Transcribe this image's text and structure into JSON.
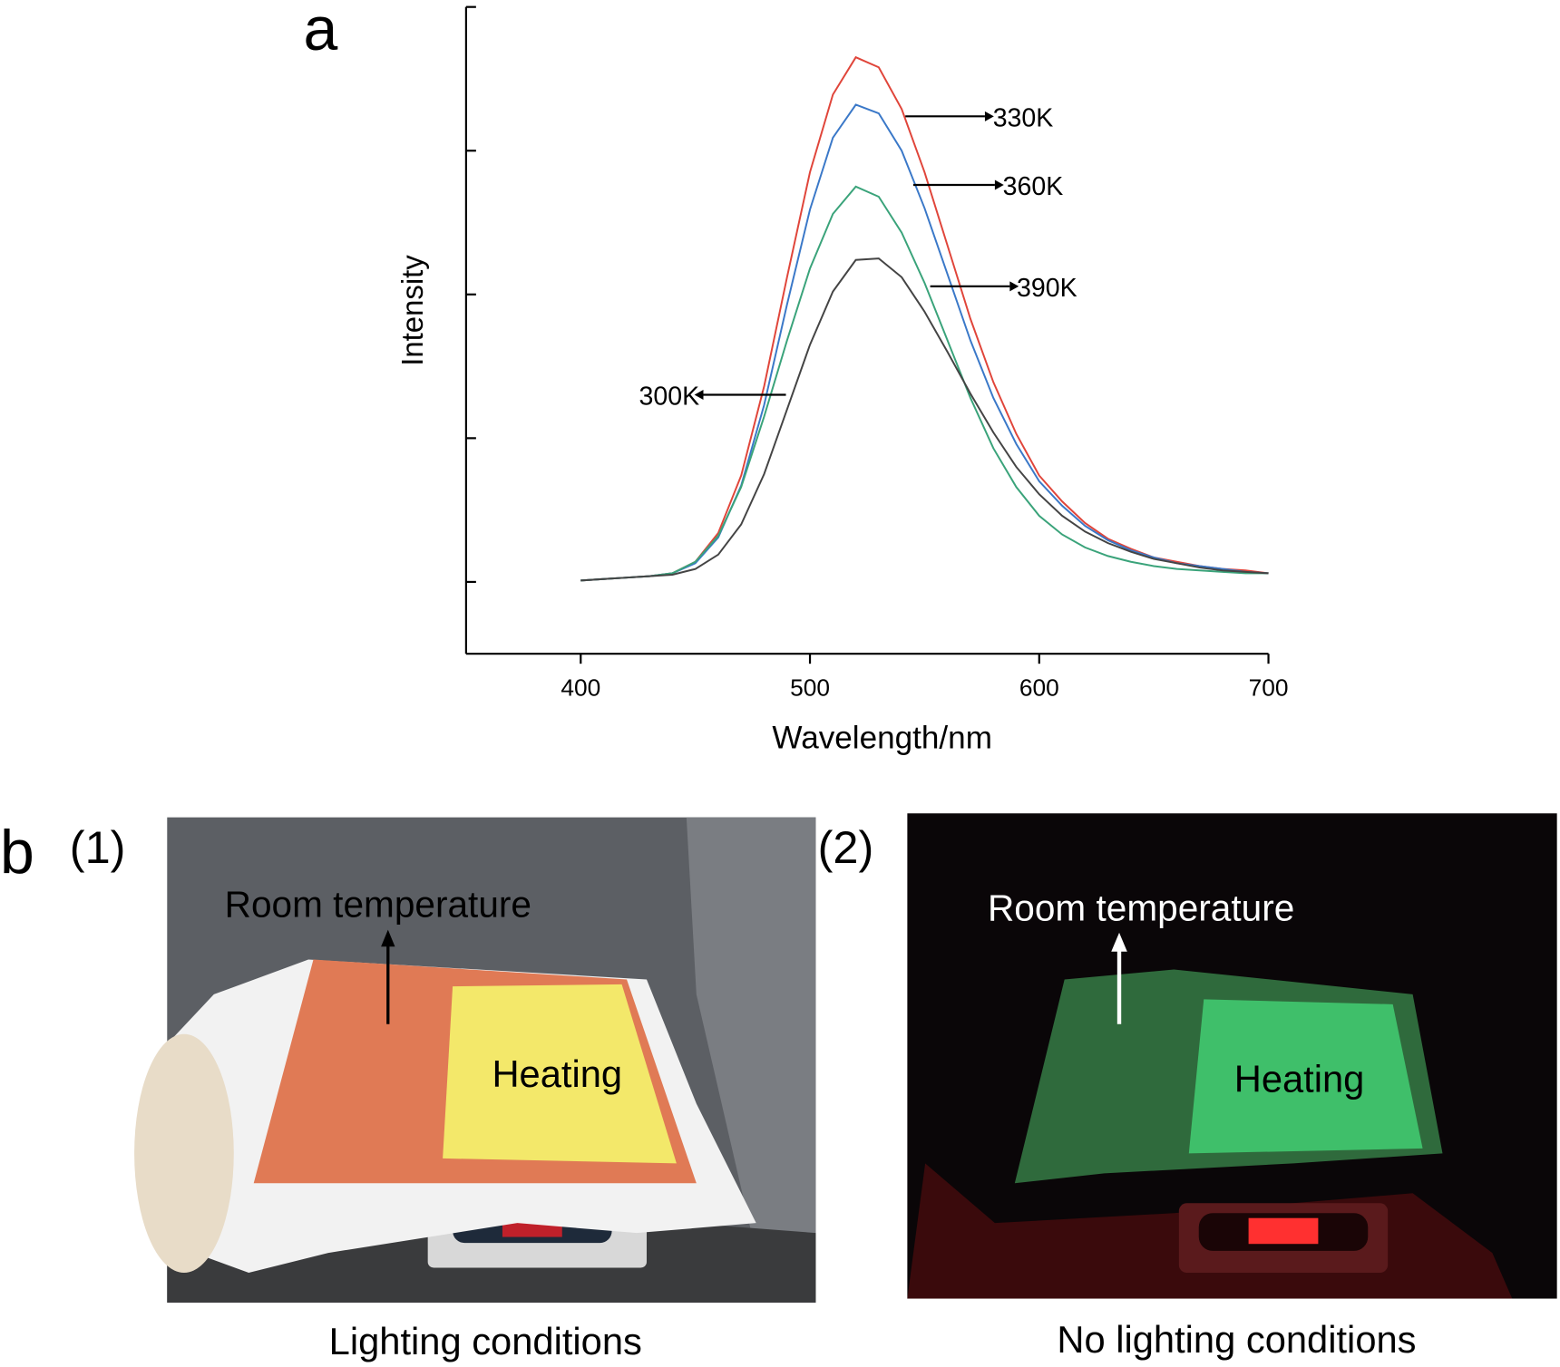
{
  "chart_data": {
    "type": "line",
    "x_label": "Wavelength/nm",
    "y_label": "Intensity",
    "x": [
      400,
      410,
      420,
      430,
      440,
      450,
      460,
      470,
      480,
      490,
      500,
      510,
      520,
      530,
      540,
      550,
      560,
      570,
      580,
      590,
      600,
      610,
      620,
      630,
      640,
      650,
      660,
      670,
      680,
      690,
      700
    ],
    "series": [
      {
        "name": "330K",
        "color": "#e0453a",
        "values": [
          0.01,
          0.02,
          0.03,
          0.04,
          0.06,
          0.14,
          0.34,
          0.74,
          1.36,
          2.12,
          2.85,
          3.39,
          3.65,
          3.58,
          3.29,
          2.85,
          2.34,
          1.83,
          1.39,
          1.03,
          0.74,
          0.56,
          0.41,
          0.3,
          0.23,
          0.17,
          0.14,
          0.11,
          0.09,
          0.08,
          0.06
        ]
      },
      {
        "name": "360K",
        "color": "#3a78c8",
        "values": [
          0.01,
          0.02,
          0.03,
          0.04,
          0.06,
          0.13,
          0.31,
          0.67,
          1.23,
          1.93,
          2.59,
          3.09,
          3.32,
          3.26,
          3.0,
          2.6,
          2.14,
          1.68,
          1.28,
          0.96,
          0.7,
          0.53,
          0.39,
          0.29,
          0.22,
          0.17,
          0.13,
          0.11,
          0.09,
          0.07,
          0.06
        ]
      },
      {
        "name": "390K",
        "color": "#3aa37a",
        "values": [
          0.01,
          0.02,
          0.03,
          0.04,
          0.06,
          0.14,
          0.32,
          0.66,
          1.15,
          1.68,
          2.18,
          2.56,
          2.75,
          2.68,
          2.43,
          2.08,
          1.68,
          1.28,
          0.93,
          0.66,
          0.46,
          0.33,
          0.24,
          0.18,
          0.14,
          0.11,
          0.09,
          0.08,
          0.07,
          0.06,
          0.06
        ]
      },
      {
        "name": "300K",
        "color": "#444444",
        "values": [
          0.01,
          0.02,
          0.03,
          0.04,
          0.05,
          0.09,
          0.19,
          0.4,
          0.75,
          1.2,
          1.65,
          2.02,
          2.24,
          2.25,
          2.12,
          1.88,
          1.6,
          1.31,
          1.04,
          0.8,
          0.61,
          0.46,
          0.35,
          0.27,
          0.21,
          0.16,
          0.13,
          0.1,
          0.08,
          0.07,
          0.06
        ]
      }
    ],
    "xlim": [
      350,
      700
    ],
    "xticks": [
      400,
      500,
      600,
      700
    ],
    "ylim": [
      -0.5,
      4
    ],
    "yticks": [
      0,
      1,
      2,
      3,
      4
    ]
  },
  "figure": {
    "panel_a": "a",
    "panel_b": "b"
  },
  "photos": [
    {
      "label": "(1)",
      "top_text": "Room temperature",
      "center_text": "Heating",
      "caption": "Lighting conditions"
    },
    {
      "label": "(2)",
      "top_text": "Room temperature",
      "center_text": "Heating",
      "caption": "No lighting conditions"
    }
  ]
}
